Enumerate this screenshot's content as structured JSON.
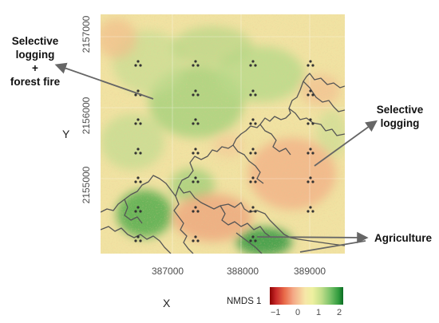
{
  "annotations": {
    "left_top": "Selective",
    "left_mid": "logging",
    "left_plus": "+",
    "left_bottom": "forest fire",
    "right_top": "Selective",
    "right_bottom": "logging",
    "agri": "Agriculture"
  },
  "axes": {
    "xlabel": "X",
    "ylabel": "Y",
    "x_ticks": [
      "387000",
      "388000",
      "389000"
    ],
    "y_ticks": [
      "2157000",
      "2156000",
      "2155000"
    ],
    "grid": true
  },
  "legend": {
    "title": "NMDS 1",
    "ticks": [
      "−1",
      "0",
      "1",
      "2"
    ],
    "colors": [
      "#8b0000",
      "#e96b4a",
      "#f6e6a8",
      "#7cc36a",
      "#0b6b23"
    ]
  },
  "map": {
    "sample_plot_marker": "triangular-dot-cluster",
    "boundary_color": "#555555",
    "background_color": "#f6e6a8"
  }
}
